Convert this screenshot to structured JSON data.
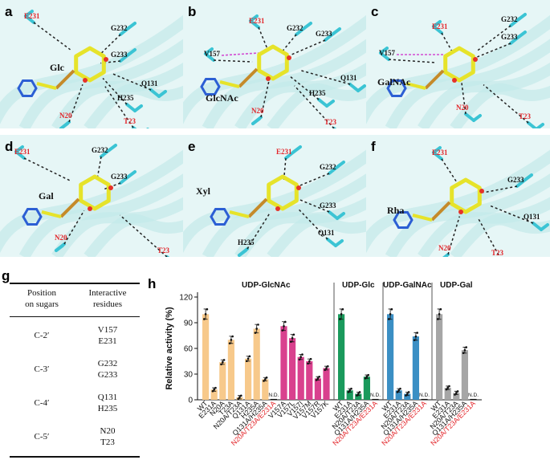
{
  "structure_panels": [
    {
      "letter": "a",
      "sugar": "Glc",
      "residues": [
        {
          "name": "E231",
          "red": true
        },
        {
          "name": "G232",
          "red": false
        },
        {
          "name": "G233",
          "red": false
        },
        {
          "name": "Q131",
          "red": false
        },
        {
          "name": "H235",
          "red": false
        },
        {
          "name": "N20",
          "red": true
        },
        {
          "name": "T23",
          "red": true
        }
      ]
    },
    {
      "letter": "b",
      "sugar": "GlcNAc",
      "residues": [
        {
          "name": "E231",
          "red": true
        },
        {
          "name": "G232",
          "red": false
        },
        {
          "name": "G233",
          "red": false
        },
        {
          "name": "V157",
          "red": false
        },
        {
          "name": "Q131",
          "red": false
        },
        {
          "name": "H235",
          "red": false
        },
        {
          "name": "N20",
          "red": true
        },
        {
          "name": "T23",
          "red": true
        }
      ]
    },
    {
      "letter": "c",
      "sugar": "GalNAc",
      "residues": [
        {
          "name": "E231",
          "red": true
        },
        {
          "name": "G232",
          "red": false
        },
        {
          "name": "G233",
          "red": false
        },
        {
          "name": "V157",
          "red": false
        },
        {
          "name": "N20",
          "red": true
        },
        {
          "name": "T23",
          "red": true
        }
      ]
    },
    {
      "letter": "d",
      "sugar": "Gal",
      "residues": [
        {
          "name": "E231",
          "red": true
        },
        {
          "name": "G232",
          "red": false
        },
        {
          "name": "G233",
          "red": false
        },
        {
          "name": "N20",
          "red": true
        },
        {
          "name": "T23",
          "red": true
        }
      ]
    },
    {
      "letter": "e",
      "sugar": "Xyl",
      "residues": [
        {
          "name": "E231",
          "red": true
        },
        {
          "name": "G232",
          "red": false
        },
        {
          "name": "G233",
          "red": false
        },
        {
          "name": "H235",
          "red": false
        },
        {
          "name": "Q131",
          "red": false
        }
      ]
    },
    {
      "letter": "f",
      "sugar": "Rha",
      "residues": [
        {
          "name": "E231",
          "red": true
        },
        {
          "name": "G233",
          "red": false
        },
        {
          "name": "Q131",
          "red": false
        },
        {
          "name": "N20",
          "red": true
        },
        {
          "name": "T23",
          "red": true
        }
      ]
    }
  ],
  "table_g": {
    "letter": "g",
    "header_col1": "Position\non sugars",
    "header_col2": "Interactive\nresidues",
    "rows": [
      {
        "position": "C-2′",
        "residues": "V157\nE231"
      },
      {
        "position": "C-3′",
        "residues": "G232\nG233"
      },
      {
        "position": "C-4′",
        "residues": "Q131\nH235"
      },
      {
        "position": "C-5′",
        "residues": "N20\nT23"
      }
    ]
  },
  "chart_data": {
    "type": "bar",
    "letter": "h",
    "ylabel": "Relative activity (%)",
    "ylim": [
      0,
      120
    ],
    "yticks": [
      0,
      30,
      60,
      90,
      120
    ],
    "nd_label": "N.D.",
    "groups": [
      {
        "name": "UDP-GlcNAc",
        "color": "#f7c98b",
        "bars": [
          {
            "label": "WT",
            "value": 100,
            "red": false,
            "nd": false
          },
          {
            "label": "E231A",
            "value": 12,
            "red": false,
            "nd": false
          },
          {
            "label": "N20A",
            "value": 44,
            "red": false,
            "nd": false
          },
          {
            "label": "T23A",
            "value": 70,
            "red": false,
            "nd": false
          },
          {
            "label": "N20A/T23A",
            "value": 3,
            "red": false,
            "nd": false
          },
          {
            "label": "Q131A",
            "value": 48,
            "red": false,
            "nd": false
          },
          {
            "label": "H235A",
            "value": 83,
            "red": false,
            "nd": false
          },
          {
            "label": "Q131A/H235A",
            "value": 24,
            "red": false,
            "nd": false
          },
          {
            "label": "N20A/T23A/E231A",
            "value": 1,
            "red": true,
            "nd": true
          }
        ]
      },
      {
        "name": "UDP-GlcNAc V157",
        "color": "#d9418e",
        "bars": [
          {
            "label": "V157A",
            "value": 86,
            "red": false,
            "nd": false
          },
          {
            "label": "V157L",
            "value": 72,
            "red": false,
            "nd": false
          },
          {
            "label": "V157I",
            "value": 50,
            "red": false,
            "nd": false
          },
          {
            "label": "V157M",
            "value": 45,
            "red": false,
            "nd": false
          },
          {
            "label": "V157R",
            "value": 25,
            "red": false,
            "nd": false
          },
          {
            "label": "V157K",
            "value": 37,
            "red": false,
            "nd": false
          }
        ]
      },
      {
        "name": "UDP-Glc",
        "color": "#1a9a5c",
        "bars": [
          {
            "label": "WT",
            "value": 100,
            "red": false,
            "nd": false
          },
          {
            "label": "E231A",
            "value": 11,
            "red": false,
            "nd": false
          },
          {
            "label": "N20A/T23A",
            "value": 7,
            "red": false,
            "nd": false
          },
          {
            "label": "Q131A/H235A",
            "value": 27,
            "red": false,
            "nd": false
          },
          {
            "label": "N20A/T23A/E231A",
            "value": 1,
            "red": true,
            "nd": true
          }
        ]
      },
      {
        "name": "UDP-GalNAc",
        "color": "#3b8fc4",
        "bars": [
          {
            "label": "WT",
            "value": 100,
            "red": false,
            "nd": false
          },
          {
            "label": "E231A",
            "value": 11,
            "red": false,
            "nd": false
          },
          {
            "label": "N20A/T23A",
            "value": 7,
            "red": false,
            "nd": false
          },
          {
            "label": "Q131A/H235A",
            "value": 74,
            "red": false,
            "nd": false
          },
          {
            "label": "N20A/T23A/E231A",
            "value": 1,
            "red": true,
            "nd": true
          }
        ]
      },
      {
        "name": "UDP-Gal",
        "color": "#a6a6a6",
        "bars": [
          {
            "label": "WT",
            "value": 100,
            "red": false,
            "nd": false
          },
          {
            "label": "E231A",
            "value": 14,
            "red": false,
            "nd": false
          },
          {
            "label": "N20A/T23A",
            "value": 8,
            "red": false,
            "nd": false
          },
          {
            "label": "Q131A/H235A",
            "value": 58,
            "red": false,
            "nd": false
          },
          {
            "label": "N20A/T23A/E231A",
            "value": 1,
            "red": true,
            "nd": true
          }
        ]
      }
    ],
    "group_titles": [
      {
        "text": "UDP-GlcNAc",
        "span": [
          0,
          1
        ]
      },
      {
        "text": "UDP-Glc",
        "span": [
          2,
          2
        ]
      },
      {
        "text": "UDP-GalNAc",
        "span": [
          3,
          3
        ]
      },
      {
        "text": "UDP-Gal",
        "span": [
          4,
          4
        ]
      }
    ]
  }
}
